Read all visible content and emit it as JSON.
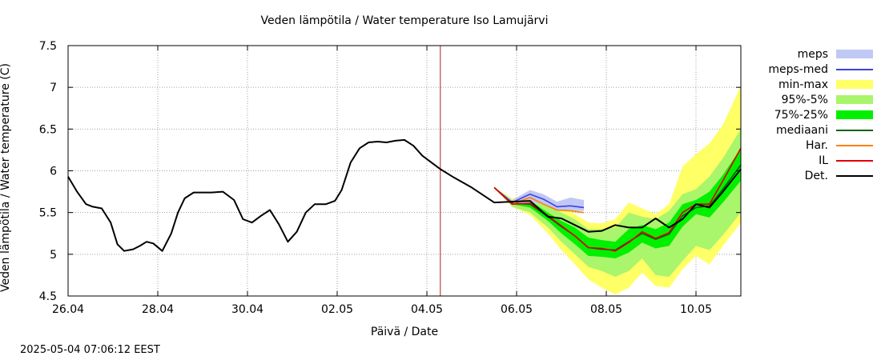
{
  "chart_data": {
    "type": "line",
    "title": "Veden lämpötila / Water temperature Iso Lamujärvi",
    "xlabel": "Päivä / Date",
    "ylabel": "Veden lämpötila / Water temperature (C)",
    "timestamp": "2025-05-04 07:06:12 EEST",
    "xlim": [
      0,
      15
    ],
    "ylim": [
      4.5,
      7.5
    ],
    "x_unit": "days since 26.04",
    "x_ticks": [
      0,
      2,
      4,
      6,
      8,
      10,
      12,
      14
    ],
    "x_tick_labels": [
      "26.04",
      "28.04",
      "30.04",
      "02.05",
      "04.05",
      "06.05",
      "08.05",
      "10.05"
    ],
    "y_ticks": [
      4.5,
      5,
      5.5,
      6,
      6.5,
      7,
      7.5
    ],
    "y_tick_labels": [
      "4.5",
      "5",
      "5.5",
      "6",
      "6.5",
      "7",
      "7.5"
    ],
    "grid": true,
    "forecast_start_x": 8.3,
    "forecast_line_color": "#b22222",
    "legend_position": "right",
    "series": [
      {
        "name": "min-max",
        "kind": "band",
        "color": "#ffff66",
        "x": [
          9.5,
          9.9,
          10.3,
          10.7,
          11.0,
          11.3,
          11.6,
          11.9,
          12.2,
          12.5,
          12.8,
          13.1,
          13.4,
          13.7,
          14.0,
          14.3,
          14.6,
          15.0
        ],
        "lo": [
          5.8,
          5.57,
          5.47,
          5.25,
          5.05,
          4.88,
          4.7,
          4.6,
          4.52,
          4.6,
          4.78,
          4.62,
          4.6,
          4.82,
          4.98,
          4.88,
          5.1,
          5.38
        ],
        "hi": [
          5.8,
          5.67,
          5.73,
          5.68,
          5.58,
          5.48,
          5.38,
          5.37,
          5.42,
          5.62,
          5.55,
          5.48,
          5.6,
          6.05,
          6.2,
          6.33,
          6.55,
          7.02
        ]
      },
      {
        "name": "95%-5%",
        "kind": "band",
        "color": "#a9f56b",
        "x": [
          9.5,
          9.9,
          10.3,
          10.7,
          11.0,
          11.3,
          11.6,
          11.9,
          12.2,
          12.5,
          12.8,
          13.1,
          13.4,
          13.7,
          14.0,
          14.3,
          14.6,
          15.0
        ],
        "lo": [
          5.8,
          5.57,
          5.5,
          5.32,
          5.15,
          5.0,
          4.85,
          4.8,
          4.73,
          4.8,
          4.95,
          4.75,
          4.73,
          4.92,
          5.1,
          5.05,
          5.23,
          5.5
        ],
        "hi": [
          5.8,
          5.65,
          5.68,
          5.6,
          5.5,
          5.42,
          5.3,
          5.3,
          5.32,
          5.5,
          5.45,
          5.42,
          5.52,
          5.72,
          5.78,
          5.93,
          6.15,
          6.5
        ]
      },
      {
        "name": "75%-25%",
        "kind": "band",
        "color": "#00f000",
        "x": [
          9.5,
          9.9,
          10.3,
          10.7,
          11.0,
          11.3,
          11.6,
          11.9,
          12.2,
          12.5,
          12.8,
          13.1,
          13.4,
          13.7,
          14.0,
          14.3,
          14.6,
          15.0
        ],
        "lo": [
          5.8,
          5.6,
          5.56,
          5.4,
          5.25,
          5.12,
          4.98,
          4.97,
          4.95,
          5.02,
          5.14,
          5.07,
          5.1,
          5.33,
          5.48,
          5.44,
          5.62,
          5.88
        ],
        "hi": [
          5.8,
          5.64,
          5.64,
          5.5,
          5.4,
          5.32,
          5.2,
          5.17,
          5.15,
          5.3,
          5.35,
          5.3,
          5.38,
          5.6,
          5.65,
          5.75,
          5.95,
          6.27
        ]
      },
      {
        "name": "meps",
        "kind": "band",
        "color": "#c0c8f5",
        "x": [
          9.5,
          9.9,
          10.3,
          10.6,
          10.9,
          11.2,
          11.5
        ],
        "lo": [
          5.8,
          5.6,
          5.62,
          5.6,
          5.52,
          5.52,
          5.52
        ],
        "hi": [
          5.8,
          5.65,
          5.77,
          5.72,
          5.63,
          5.68,
          5.65
        ]
      },
      {
        "name": "meps-med",
        "kind": "line",
        "color": "#4040e0",
        "x": [
          9.5,
          9.9,
          10.3,
          10.6,
          10.9,
          11.2,
          11.5
        ],
        "y": [
          5.8,
          5.62,
          5.72,
          5.66,
          5.57,
          5.58,
          5.56
        ]
      },
      {
        "name": "mediaani",
        "kind": "line",
        "color": "#006400",
        "x": [
          9.5,
          9.9,
          10.3,
          10.7,
          11.0,
          11.3,
          11.6,
          11.9,
          12.2,
          12.5,
          12.8,
          13.1,
          13.4,
          13.7,
          14.0,
          14.3,
          14.6,
          15.0
        ],
        "y": [
          5.8,
          5.61,
          5.6,
          5.45,
          5.33,
          5.22,
          5.08,
          5.06,
          5.05,
          5.15,
          5.25,
          5.18,
          5.24,
          5.46,
          5.56,
          5.58,
          5.78,
          6.07
        ]
      },
      {
        "name": "Har.",
        "kind": "line",
        "color": "#ff8000",
        "x": [
          9.5,
          9.9,
          10.3,
          10.6,
          10.9,
          11.2,
          11.5
        ],
        "y": [
          5.8,
          5.6,
          5.68,
          5.6,
          5.53,
          5.52,
          5.5
        ]
      },
      {
        "name": "IL",
        "kind": "line",
        "color": "#dd0000",
        "x": [
          9.5,
          9.9,
          10.3,
          10.7,
          11.0,
          11.3,
          11.6,
          11.9,
          12.2,
          12.5,
          12.8,
          13.1,
          13.4,
          13.7,
          14.0,
          14.3,
          14.6,
          15.0
        ],
        "y": [
          5.8,
          5.6,
          5.61,
          5.46,
          5.34,
          5.22,
          5.08,
          5.07,
          5.04,
          5.14,
          5.27,
          5.19,
          5.26,
          5.5,
          5.6,
          5.6,
          5.88,
          6.27
        ]
      },
      {
        "name": "Det.",
        "kind": "line",
        "color": "#000000",
        "x": [
          0.0,
          0.2,
          0.4,
          0.55,
          0.75,
          0.95,
          1.1,
          1.25,
          1.45,
          1.6,
          1.75,
          1.9,
          2.1,
          2.3,
          2.45,
          2.6,
          2.8,
          3.0,
          3.2,
          3.45,
          3.7,
          3.9,
          4.1,
          4.3,
          4.5,
          4.7,
          4.9,
          5.1,
          5.3,
          5.5,
          5.75,
          5.95,
          6.1,
          6.3,
          6.5,
          6.7,
          6.9,
          7.1,
          7.3,
          7.5,
          7.7,
          7.9,
          8.1,
          8.3,
          8.6,
          9.0,
          9.5,
          9.9,
          10.3,
          10.7,
          11.0,
          11.3,
          11.6,
          11.9,
          12.2,
          12.5,
          12.8,
          13.1,
          13.4,
          13.7,
          14.0,
          14.3,
          14.6,
          15.0
        ],
        "y": [
          5.93,
          5.75,
          5.6,
          5.57,
          5.55,
          5.38,
          5.12,
          5.04,
          5.06,
          5.1,
          5.15,
          5.13,
          5.04,
          5.25,
          5.5,
          5.67,
          5.74,
          5.74,
          5.74,
          5.75,
          5.65,
          5.42,
          5.38,
          5.46,
          5.53,
          5.36,
          5.15,
          5.27,
          5.5,
          5.6,
          5.6,
          5.64,
          5.77,
          6.1,
          6.27,
          6.34,
          6.35,
          6.34,
          6.36,
          6.37,
          6.3,
          6.18,
          6.1,
          6.02,
          5.92,
          5.8,
          5.62,
          5.63,
          5.64,
          5.45,
          5.43,
          5.35,
          5.27,
          5.28,
          5.35,
          5.32,
          5.32,
          5.43,
          5.32,
          5.42,
          5.6,
          5.56,
          5.75,
          6.02
        ]
      }
    ]
  },
  "legend": [
    {
      "label": "meps",
      "kind": "band",
      "color": "#c0c8f5"
    },
    {
      "label": "meps-med",
      "kind": "line",
      "color": "#4040e0"
    },
    {
      "label": "min-max",
      "kind": "band",
      "color": "#ffff66"
    },
    {
      "label": "95%-5%",
      "kind": "band",
      "color": "#a9f56b"
    },
    {
      "label": "75%-25%",
      "kind": "band",
      "color": "#00f000"
    },
    {
      "label": "mediaani",
      "kind": "line",
      "color": "#006400"
    },
    {
      "label": "Har.",
      "kind": "line",
      "color": "#ff8000"
    },
    {
      "label": "IL",
      "kind": "line",
      "color": "#dd0000"
    },
    {
      "label": "Det.",
      "kind": "line",
      "color": "#000000"
    }
  ]
}
